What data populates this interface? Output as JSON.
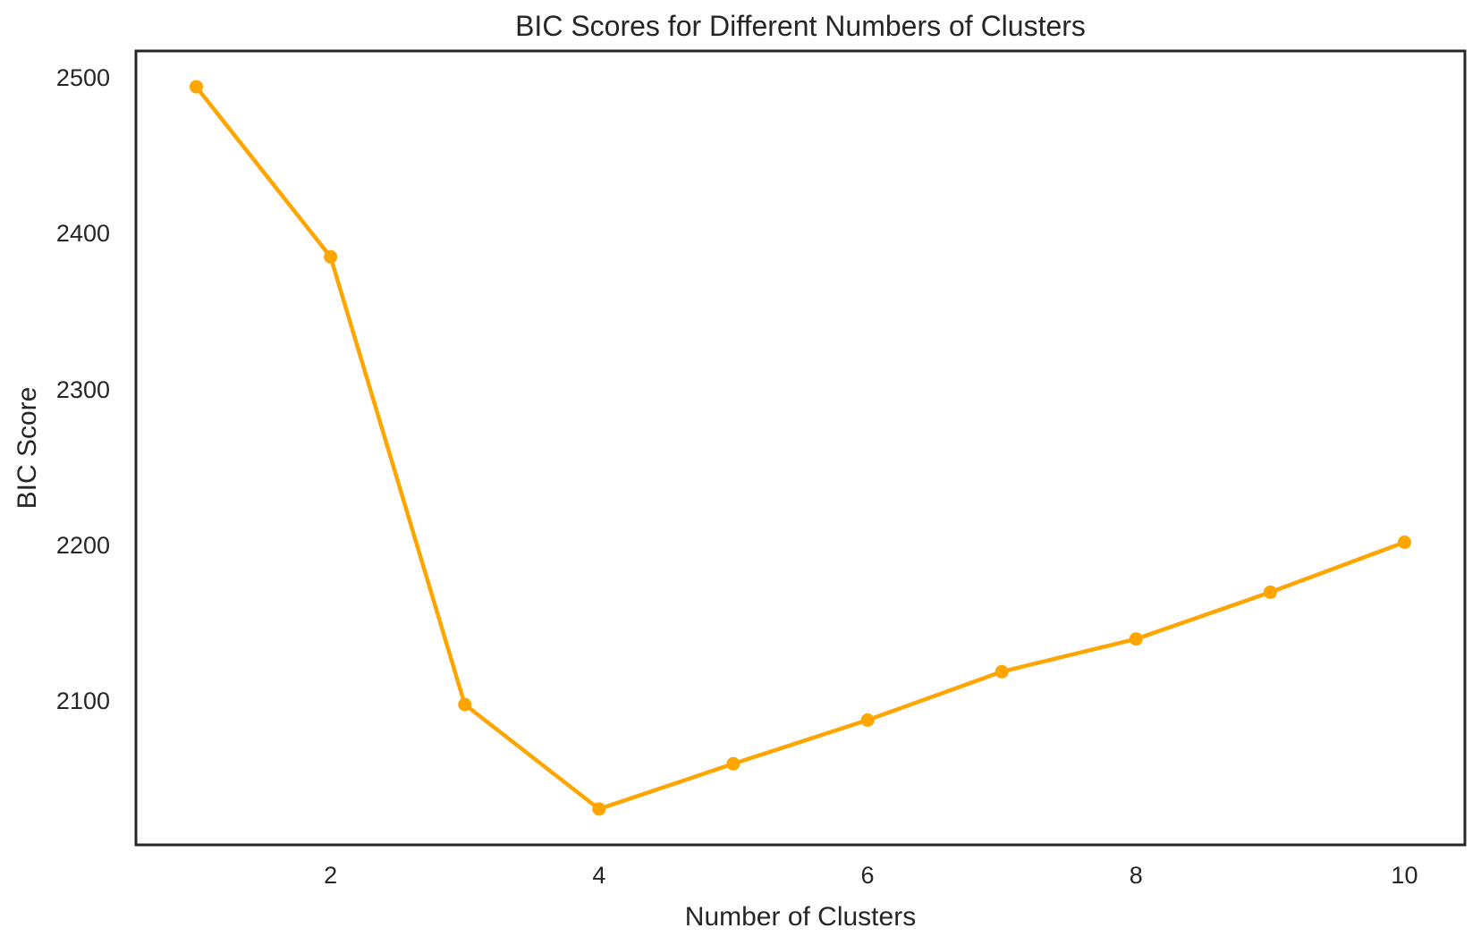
{
  "chart_data": {
    "type": "line",
    "title": "BIC Scores for Different Numbers of Clusters",
    "xlabel": "Number of Clusters",
    "ylabel": "BIC Score",
    "x": [
      1,
      2,
      3,
      4,
      5,
      6,
      7,
      8,
      9,
      10
    ],
    "series": [
      {
        "name": "BIC Score",
        "values": [
          2494,
          2385,
          2098,
          2031,
          2060,
          2088,
          2119,
          2140,
          2170,
          2202
        ]
      }
    ],
    "xticks": [
      2,
      4,
      6,
      8,
      10
    ],
    "yticks": [
      2100,
      2200,
      2300,
      2400,
      2500
    ],
    "xlim": [
      0.55,
      10.45
    ],
    "ylim": [
      2008,
      2517
    ],
    "grid": false,
    "legend": false,
    "line_color": "#FFA500",
    "marker": "circle",
    "axis_color": "#262626",
    "text_color": "#262626",
    "background": "#FFFFFF"
  }
}
